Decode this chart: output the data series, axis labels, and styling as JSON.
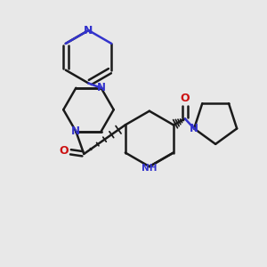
{
  "bg_color": "#e8e8e8",
  "bond_color": "#1a1a1a",
  "n_color": "#3333cc",
  "o_color": "#cc1111",
  "nh_color": "#3333cc",
  "lw": 1.8,
  "fig_w": 3.0,
  "fig_h": 3.0,
  "dpi": 100,
  "xlim": [
    0,
    10
  ],
  "ylim": [
    0,
    10
  ]
}
